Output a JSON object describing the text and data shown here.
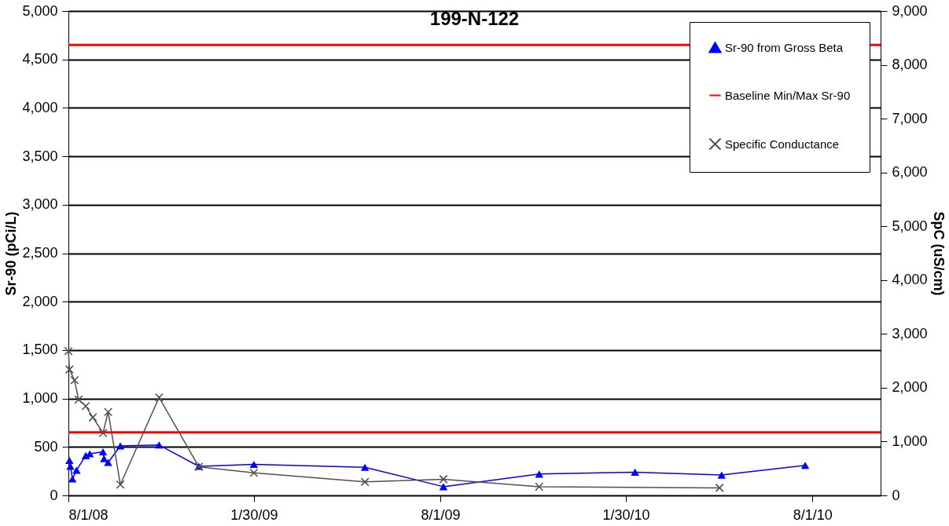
{
  "chart_data": {
    "type": "line",
    "title": "199-N-122",
    "ylabel": "Sr-90 (pCi/L)",
    "y2label": "SpC (uS/cm)",
    "xlim": [
      "2008-08-01",
      "2010-10-07"
    ],
    "xticks": [
      {
        "value": "2008-08-01",
        "label": "8/1/08"
      },
      {
        "value": "2009-01-30",
        "label": "1/30/09"
      },
      {
        "value": "2009-08-01",
        "label": "8/1/09"
      },
      {
        "value": "2010-01-30",
        "label": "1/30/10"
      },
      {
        "value": "2010-08-01",
        "label": "8/1/10"
      }
    ],
    "ylim": [
      0,
      5000
    ],
    "yticks": [
      0,
      {
        "value": 500,
        "label": "500"
      },
      {
        "value": 1000,
        "label": "1,000"
      },
      {
        "value": 1500,
        "label": "1,500"
      },
      {
        "value": 2000,
        "label": "2,000"
      },
      {
        "value": 2500,
        "label": "2,500"
      },
      {
        "value": 3000,
        "label": "3,000"
      },
      {
        "value": 3500,
        "label": "3,500"
      },
      {
        "value": 4000,
        "label": "4,000"
      },
      {
        "value": 4500,
        "label": "4,500"
      },
      {
        "value": 5000,
        "label": "5,000"
      }
    ],
    "y2lim": [
      0,
      9000
    ],
    "y2ticks": [
      0,
      {
        "value": 1000,
        "label": "1,000"
      },
      {
        "value": 2000,
        "label": "2,000"
      },
      {
        "value": 3000,
        "label": "3,000"
      },
      {
        "value": 4000,
        "label": "4,000"
      },
      {
        "value": 5000,
        "label": "5,000"
      },
      {
        "value": 6000,
        "label": "6,000"
      },
      {
        "value": 7000,
        "label": "7,000"
      },
      {
        "value": 8000,
        "label": "8,000"
      },
      {
        "value": 9000,
        "label": "9,000"
      }
    ],
    "grid": "y",
    "legend": "top right",
    "series": [
      {
        "name": "Sr-90 from Gross Beta",
        "color": "#0000ff",
        "marker": "triangle",
        "x": [
          "2008-08-02",
          "2008-08-03",
          "2008-08-05",
          "2008-08-09",
          "2008-08-18",
          "2008-08-22",
          "2008-09-04",
          "2008-09-05",
          "2008-09-09",
          "2008-09-21",
          "2008-10-29",
          "2008-12-07",
          "2009-01-30",
          "2009-05-19",
          "2009-08-04",
          "2009-11-06",
          "2010-02-08",
          "2010-05-04",
          "2010-07-25"
        ],
        "values": [
          360,
          300,
          170,
          260,
          410,
          430,
          450,
          380,
          340,
          510,
          520,
          300,
          320,
          290,
          90,
          220,
          240,
          210,
          310
        ]
      },
      {
        "name": "Specific Conductance",
        "color": "#505050",
        "marker": "cross",
        "axis": "y2",
        "x": [
          "2008-08-01",
          "2008-08-02",
          "2008-08-07",
          "2008-08-11",
          "2008-08-18",
          "2008-08-25",
          "2008-09-04",
          "2008-09-09",
          "2008-09-21",
          "2008-10-29",
          "2008-12-07",
          "2009-01-30",
          "2009-05-19",
          "2009-08-04",
          "2009-11-06",
          "2010-05-02"
        ],
        "values": [
          2680,
          2340,
          2140,
          1780,
          1660,
          1450,
          1160,
          1550,
          200,
          1820,
          530,
          420,
          250,
          300,
          160,
          140
        ]
      }
    ],
    "ref_lines": [
      {
        "axis": "y",
        "value": 4650,
        "label": "Baseline Min/Max Sr-90",
        "color": "#ff0000"
      },
      {
        "axis": "y",
        "value": 650,
        "color": "#ff0000"
      }
    ]
  }
}
